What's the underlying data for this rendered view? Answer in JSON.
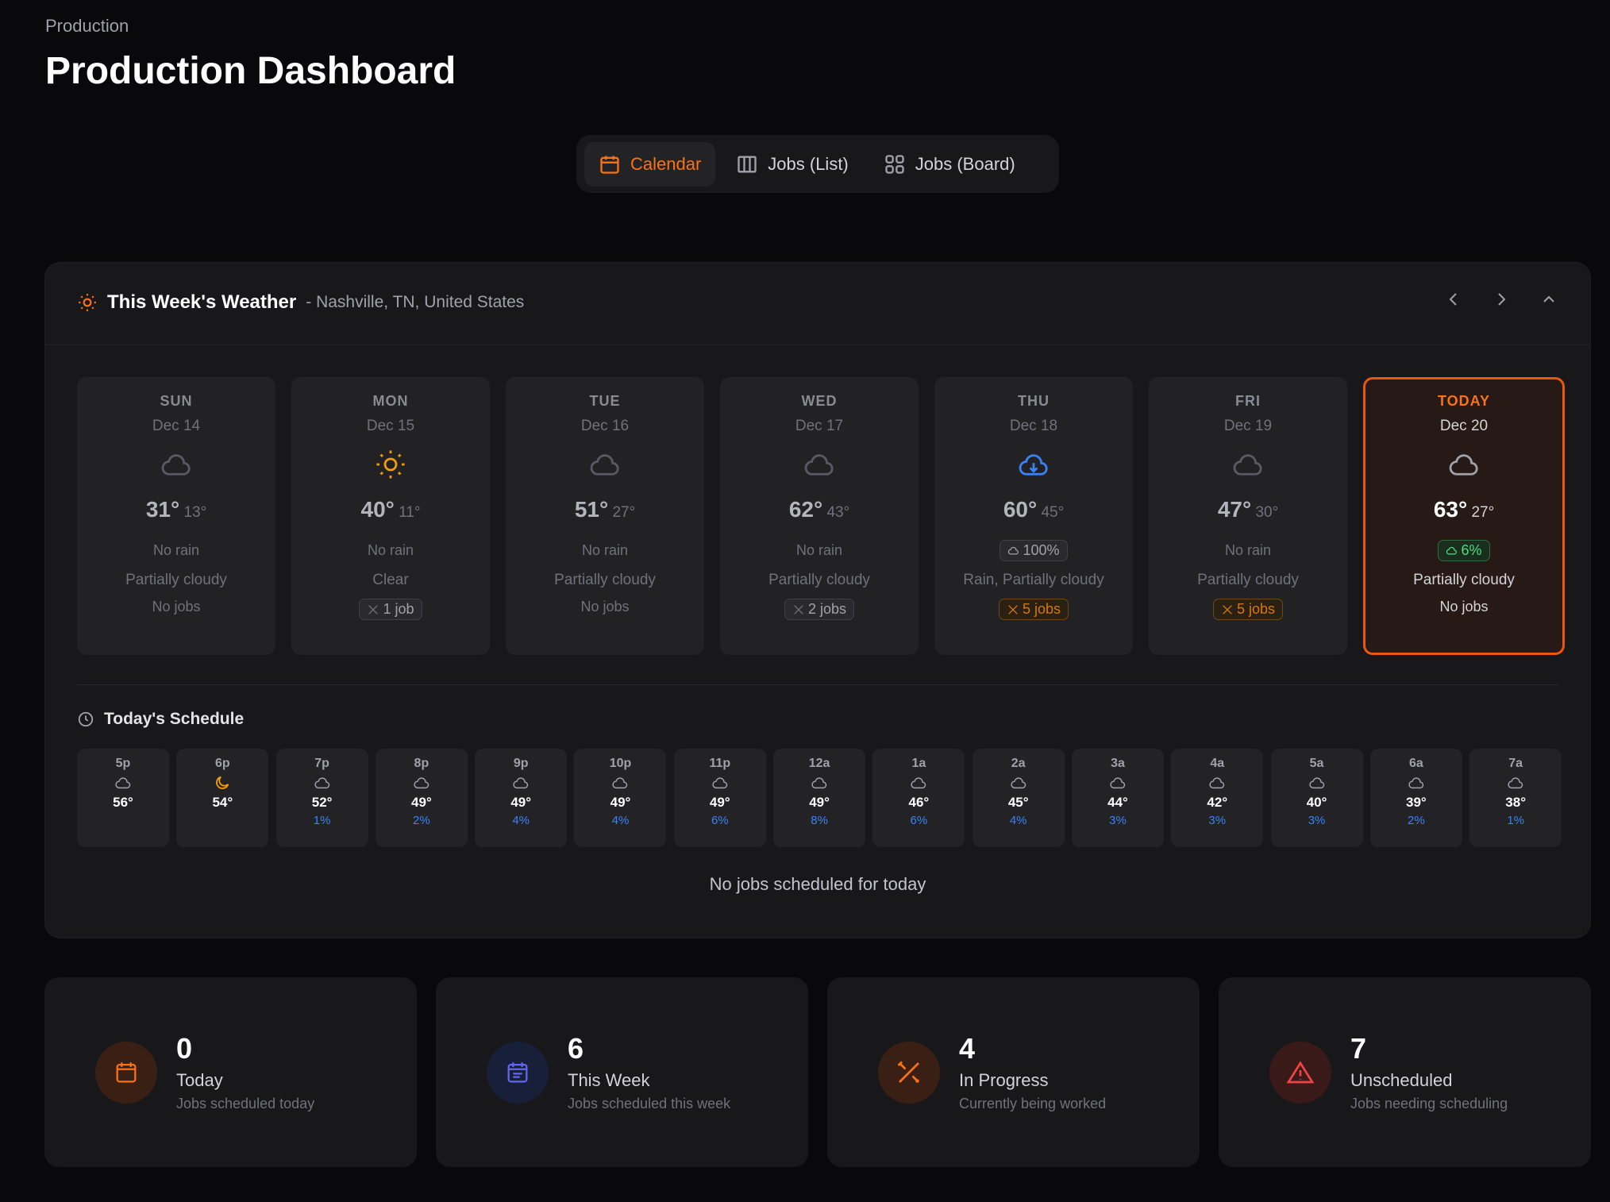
{
  "breadcrumb": "Production",
  "page_title": "Production Dashboard",
  "tabs": [
    {
      "label": "Calendar",
      "icon": "calendar-icon",
      "active": true
    },
    {
      "label": "Jobs (List)",
      "icon": "columns-icon"
    },
    {
      "label": "Jobs (Board)",
      "icon": "grid-icon"
    }
  ],
  "weather": {
    "title": "This Week's Weather",
    "location": "- Nashville, TN, United States",
    "days": [
      {
        "name": "SUN",
        "date": "Dec 14",
        "icon": "cloud",
        "high": "31°",
        "low": "13°",
        "rain": "No rain",
        "cond": "Partially cloudy",
        "jobs": "No jobs"
      },
      {
        "name": "MON",
        "date": "Dec 15",
        "icon": "sun",
        "high": "40°",
        "low": "11°",
        "rain": "No rain",
        "cond": "Clear",
        "jobs": "1 job"
      },
      {
        "name": "TUE",
        "date": "Dec 16",
        "icon": "cloud",
        "high": "51°",
        "low": "27°",
        "rain": "No rain",
        "cond": "Partially cloudy",
        "jobs": "No jobs"
      },
      {
        "name": "WED",
        "date": "Dec 17",
        "icon": "cloud",
        "high": "62°",
        "low": "43°",
        "rain": "No rain",
        "cond": "Partially cloudy",
        "jobs": "2 jobs"
      },
      {
        "name": "THU",
        "date": "Dec 18",
        "icon": "rain",
        "high": "60°",
        "low": "45°",
        "rain": "100%",
        "cond": "Rain, Partially cloudy",
        "jobs": "5 jobs"
      },
      {
        "name": "FRI",
        "date": "Dec 19",
        "icon": "cloud",
        "high": "47°",
        "low": "30°",
        "rain": "No rain",
        "cond": "Partially cloudy",
        "jobs": "5 jobs"
      },
      {
        "name": "TODAY",
        "date": "Dec 20",
        "icon": "cloud",
        "high": "63°",
        "low": "27°",
        "rain": "6%",
        "cond": "Partially cloudy",
        "jobs": "No jobs",
        "today": true
      }
    ],
    "schedule_title": "Today's Schedule",
    "hours": [
      {
        "h": "5p",
        "icon": "cloud",
        "t": "56°",
        "p": ""
      },
      {
        "h": "6p",
        "icon": "moon",
        "t": "54°",
        "p": ""
      },
      {
        "h": "7p",
        "icon": "cloud",
        "t": "52°",
        "p": "1%"
      },
      {
        "h": "8p",
        "icon": "cloud",
        "t": "49°",
        "p": "2%"
      },
      {
        "h": "9p",
        "icon": "cloud",
        "t": "49°",
        "p": "4%"
      },
      {
        "h": "10p",
        "icon": "cloud",
        "t": "49°",
        "p": "4%"
      },
      {
        "h": "11p",
        "icon": "cloud",
        "t": "49°",
        "p": "6%"
      },
      {
        "h": "12a",
        "icon": "cloud",
        "t": "49°",
        "p": "8%"
      },
      {
        "h": "1a",
        "icon": "cloud",
        "t": "46°",
        "p": "6%"
      },
      {
        "h": "2a",
        "icon": "cloud",
        "t": "45°",
        "p": "4%"
      },
      {
        "h": "3a",
        "icon": "cloud",
        "t": "44°",
        "p": "3%"
      },
      {
        "h": "4a",
        "icon": "cloud",
        "t": "42°",
        "p": "3%"
      },
      {
        "h": "5a",
        "icon": "cloud",
        "t": "40°",
        "p": "3%"
      },
      {
        "h": "6a",
        "icon": "cloud",
        "t": "39°",
        "p": "2%"
      },
      {
        "h": "7a",
        "icon": "cloud",
        "t": "38°",
        "p": "1%"
      }
    ],
    "no_jobs": "No jobs scheduled for today"
  },
  "stats": [
    {
      "value": "0",
      "label": "Today",
      "sub": "Jobs scheduled today",
      "icon": "calendar-icon",
      "color": "#f97316",
      "bg": "#3a1f14"
    },
    {
      "value": "6",
      "label": "This Week",
      "sub": "Jobs scheduled this week",
      "icon": "calendar-week-icon",
      "color": "#6366f1",
      "bg": "#172038"
    },
    {
      "value": "4",
      "label": "In Progress",
      "sub": "Currently being worked",
      "icon": "tools-icon",
      "color": "#f97316",
      "bg": "#3a1f14"
    },
    {
      "value": "7",
      "label": "Unscheduled",
      "sub": "Jobs needing scheduling",
      "icon": "alert-triangle-icon",
      "color": "#ef4444",
      "bg": "#3a1a18"
    }
  ],
  "colors": {
    "accent": "#f97316",
    "rain": "#3b82f6",
    "bg": "#09090b",
    "panel": "#18181b"
  }
}
